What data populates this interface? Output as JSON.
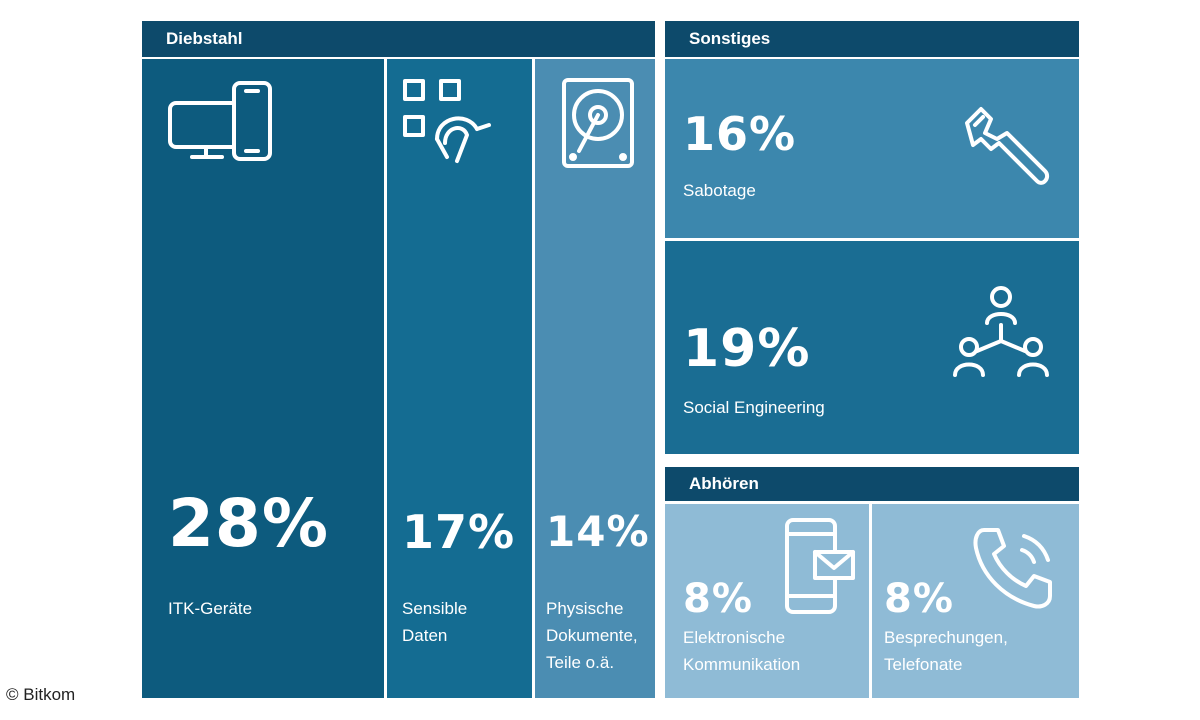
{
  "groups": {
    "diebstahl": "Diebstahl",
    "sonstiges": "Sonstiges",
    "abhoeren": "Abhören"
  },
  "chart_data": {
    "type": "table",
    "title": "",
    "groups": [
      {
        "name": "Diebstahl",
        "items": [
          {
            "value": 28,
            "label": [
              "ITK-Geräte"
            ],
            "icon": "devices-icon"
          },
          {
            "value": 17,
            "label": [
              "Sensible",
              "Daten"
            ],
            "icon": "data-fingerprint-icon"
          },
          {
            "value": 14,
            "label": [
              "Physische",
              "Dokumente,",
              "Teile o.ä."
            ],
            "icon": "hard-drive-icon"
          }
        ]
      },
      {
        "name": "Sonstiges",
        "items": [
          {
            "value": 16,
            "label": [
              "Sabotage"
            ],
            "icon": "wrench-icon"
          },
          {
            "value": 19,
            "label": [
              "Social Engineering"
            ],
            "icon": "people-network-icon"
          }
        ]
      },
      {
        "name": "Abhören",
        "items": [
          {
            "value": 8,
            "label": [
              "Elektronische",
              "Kommunikation"
            ],
            "icon": "phone-mail-icon"
          },
          {
            "value": 8,
            "label": [
              "Besprechungen,",
              "Telefonate"
            ],
            "icon": "telephone-icon"
          }
        ]
      }
    ],
    "unit": "%",
    "colors": {
      "header": "#0d4a6b",
      "itk": "#0d5b7e",
      "daten": "#146c92",
      "physische": "#4b8db2",
      "sabotage": "#3c87ad",
      "social": "#1a6d93",
      "abhoeren": "#8fbbd6"
    }
  },
  "credit": "© Bitkom"
}
